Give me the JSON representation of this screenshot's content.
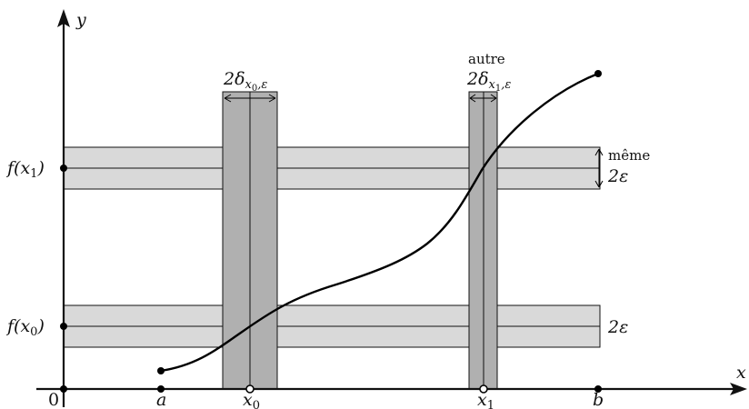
{
  "axes": {
    "x_label": "x",
    "y_label": "y",
    "origin_label": "0"
  },
  "x_marks": {
    "a": "a",
    "x0": "x",
    "x0_sub": "0",
    "x1": "x",
    "x1_sub": "1",
    "b": "b"
  },
  "y_marks": {
    "f_x0": "f(x",
    "f_x0_sub": "0",
    "f_x0_close": ")",
    "f_x1": "f(x",
    "f_x1_sub": "1",
    "f_x1_close": ")"
  },
  "annotations": {
    "delta0_prefix": "2δ",
    "delta0_sub": "x",
    "delta0_subsub": "0",
    "delta0_tail": ",ε",
    "delta1_word": "autre",
    "delta1_prefix": "2δ",
    "delta1_sub": "x",
    "delta1_subsub": "1",
    "delta1_tail": ",ε",
    "eps_top_word": "même",
    "eps_top": "2ε",
    "eps_bottom": "2ε"
  },
  "colors": {
    "band_light": "#d9d9d9",
    "band_dark": "#b0b0b0",
    "ink": "#000000"
  }
}
